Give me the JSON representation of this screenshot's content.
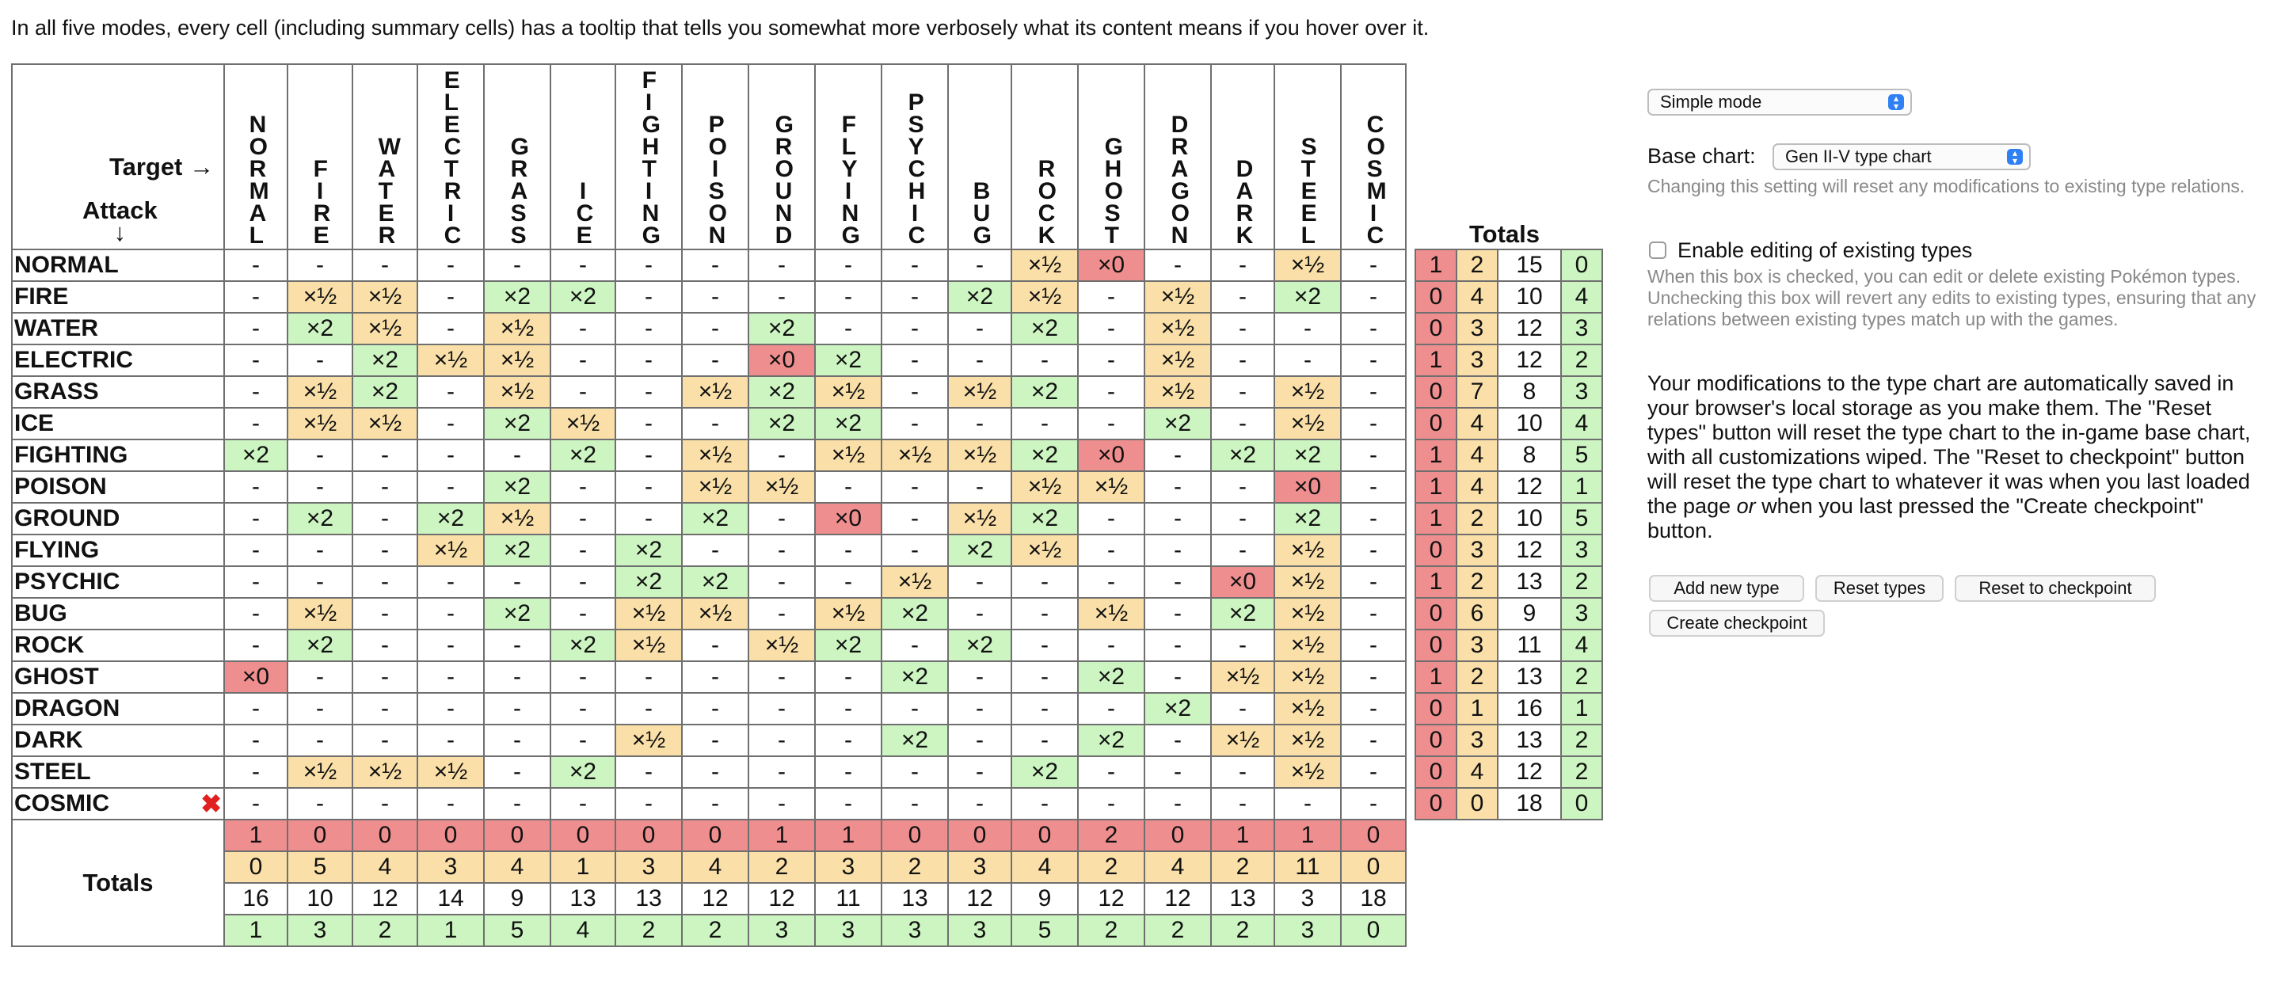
{
  "intro": {
    "before": "In all five modes, every cell (including summary cells) has a tooltip that tells you somewhat more verbosely what its content means if you hover over it."
  },
  "chart": {
    "target_label": "Target →",
    "attack_label": "Attack",
    "attack_arrow": "↓",
    "totals_label": "Totals",
    "columns": [
      "NORMAL",
      "FIRE",
      "WATER",
      "ELECTRIC",
      "GRASS",
      "ICE",
      "FIGHTING",
      "POISON",
      "GROUND",
      "FLYING",
      "PSYCHIC",
      "BUG",
      "ROCK",
      "GHOST",
      "DRAGON",
      "DARK",
      "STEEL",
      "COSMIC"
    ],
    "rows": [
      {
        "name": "NORMAL",
        "cells": [
          "-",
          "-",
          "-",
          "-",
          "-",
          "-",
          "-",
          "-",
          "-",
          "-",
          "-",
          "-",
          "×½",
          "×0",
          "-",
          "-",
          "×½",
          "-"
        ],
        "totals": [
          "1",
          "2",
          "15",
          "0"
        ]
      },
      {
        "name": "FIRE",
        "cells": [
          "-",
          "×½",
          "×½",
          "-",
          "×2",
          "×2",
          "-",
          "-",
          "-",
          "-",
          "-",
          "×2",
          "×½",
          "-",
          "×½",
          "-",
          "×2",
          "-"
        ],
        "totals": [
          "0",
          "4",
          "10",
          "4"
        ]
      },
      {
        "name": "WATER",
        "cells": [
          "-",
          "×2",
          "×½",
          "-",
          "×½",
          "-",
          "-",
          "-",
          "×2",
          "-",
          "-",
          "-",
          "×2",
          "-",
          "×½",
          "-",
          "-",
          "-"
        ],
        "totals": [
          "0",
          "3",
          "12",
          "3"
        ]
      },
      {
        "name": "ELECTRIC",
        "cells": [
          "-",
          "-",
          "×2",
          "×½",
          "×½",
          "-",
          "-",
          "-",
          "×0",
          "×2",
          "-",
          "-",
          "-",
          "-",
          "×½",
          "-",
          "-",
          "-"
        ],
        "totals": [
          "1",
          "3",
          "12",
          "2"
        ]
      },
      {
        "name": "GRASS",
        "cells": [
          "-",
          "×½",
          "×2",
          "-",
          "×½",
          "-",
          "-",
          "×½",
          "×2",
          "×½",
          "-",
          "×½",
          "×2",
          "-",
          "×½",
          "-",
          "×½",
          "-"
        ],
        "totals": [
          "0",
          "7",
          "8",
          "3"
        ]
      },
      {
        "name": "ICE",
        "cells": [
          "-",
          "×½",
          "×½",
          "-",
          "×2",
          "×½",
          "-",
          "-",
          "×2",
          "×2",
          "-",
          "-",
          "-",
          "-",
          "×2",
          "-",
          "×½",
          "-"
        ],
        "totals": [
          "0",
          "4",
          "10",
          "4"
        ]
      },
      {
        "name": "FIGHTING",
        "cells": [
          "×2",
          "-",
          "-",
          "-",
          "-",
          "×2",
          "-",
          "×½",
          "-",
          "×½",
          "×½",
          "×½",
          "×2",
          "×0",
          "-",
          "×2",
          "×2",
          "-"
        ],
        "totals": [
          "1",
          "4",
          "8",
          "5"
        ]
      },
      {
        "name": "POISON",
        "cells": [
          "-",
          "-",
          "-",
          "-",
          "×2",
          "-",
          "-",
          "×½",
          "×½",
          "-",
          "-",
          "-",
          "×½",
          "×½",
          "-",
          "-",
          "×0",
          "-"
        ],
        "totals": [
          "1",
          "4",
          "12",
          "1"
        ]
      },
      {
        "name": "GROUND",
        "cells": [
          "-",
          "×2",
          "-",
          "×2",
          "×½",
          "-",
          "-",
          "×2",
          "-",
          "×0",
          "-",
          "×½",
          "×2",
          "-",
          "-",
          "-",
          "×2",
          "-"
        ],
        "totals": [
          "1",
          "2",
          "10",
          "5"
        ]
      },
      {
        "name": "FLYING",
        "cells": [
          "-",
          "-",
          "-",
          "×½",
          "×2",
          "-",
          "×2",
          "-",
          "-",
          "-",
          "-",
          "×2",
          "×½",
          "-",
          "-",
          "-",
          "×½",
          "-"
        ],
        "totals": [
          "0",
          "3",
          "12",
          "3"
        ]
      },
      {
        "name": "PSYCHIC",
        "cells": [
          "-",
          "-",
          "-",
          "-",
          "-",
          "-",
          "×2",
          "×2",
          "-",
          "-",
          "×½",
          "-",
          "-",
          "-",
          "-",
          "×0",
          "×½",
          "-"
        ],
        "totals": [
          "1",
          "2",
          "13",
          "2"
        ]
      },
      {
        "name": "BUG",
        "cells": [
          "-",
          "×½",
          "-",
          "-",
          "×2",
          "-",
          "×½",
          "×½",
          "-",
          "×½",
          "×2",
          "-",
          "-",
          "×½",
          "-",
          "×2",
          "×½",
          "-"
        ],
        "totals": [
          "0",
          "6",
          "9",
          "3"
        ]
      },
      {
        "name": "ROCK",
        "cells": [
          "-",
          "×2",
          "-",
          "-",
          "-",
          "×2",
          "×½",
          "-",
          "×½",
          "×2",
          "-",
          "×2",
          "-",
          "-",
          "-",
          "-",
          "×½",
          "-"
        ],
        "totals": [
          "0",
          "3",
          "11",
          "4"
        ]
      },
      {
        "name": "GHOST",
        "cells": [
          "×0",
          "-",
          "-",
          "-",
          "-",
          "-",
          "-",
          "-",
          "-",
          "-",
          "×2",
          "-",
          "-",
          "×2",
          "-",
          "×½",
          "×½",
          "-"
        ],
        "totals": [
          "1",
          "2",
          "13",
          "2"
        ]
      },
      {
        "name": "DRAGON",
        "cells": [
          "-",
          "-",
          "-",
          "-",
          "-",
          "-",
          "-",
          "-",
          "-",
          "-",
          "-",
          "-",
          "-",
          "-",
          "×2",
          "-",
          "×½",
          "-"
        ],
        "totals": [
          "0",
          "1",
          "16",
          "1"
        ]
      },
      {
        "name": "DARK",
        "cells": [
          "-",
          "-",
          "-",
          "-",
          "-",
          "-",
          "×½",
          "-",
          "-",
          "-",
          "×2",
          "-",
          "-",
          "×2",
          "-",
          "×½",
          "×½",
          "-"
        ],
        "totals": [
          "0",
          "3",
          "13",
          "2"
        ]
      },
      {
        "name": "STEEL",
        "cells": [
          "-",
          "×½",
          "×½",
          "×½",
          "-",
          "×2",
          "-",
          "-",
          "-",
          "-",
          "-",
          "-",
          "×2",
          "-",
          "-",
          "-",
          "×½",
          "-"
        ],
        "totals": [
          "0",
          "4",
          "12",
          "2"
        ]
      },
      {
        "name": "COSMIC",
        "cells": [
          "-",
          "-",
          "-",
          "-",
          "-",
          "-",
          "-",
          "-",
          "-",
          "-",
          "-",
          "-",
          "-",
          "-",
          "-",
          "-",
          "-",
          "-"
        ],
        "totals": [
          "0",
          "0",
          "18",
          "0"
        ],
        "deletable": true
      }
    ],
    "delete_icon": "✖",
    "col_totals": [
      [
        "1",
        "0",
        "0",
        "0",
        "0",
        "0",
        "0",
        "0",
        "1",
        "1",
        "0",
        "0",
        "0",
        "2",
        "0",
        "1",
        "1",
        "0"
      ],
      [
        "0",
        "5",
        "4",
        "3",
        "4",
        "1",
        "3",
        "4",
        "2",
        "3",
        "2",
        "3",
        "4",
        "2",
        "4",
        "2",
        "11",
        "0"
      ],
      [
        "16",
        "10",
        "12",
        "14",
        "9",
        "13",
        "13",
        "12",
        "12",
        "11",
        "13",
        "12",
        "9",
        "12",
        "12",
        "13",
        "3",
        "18"
      ],
      [
        "1",
        "3",
        "2",
        "1",
        "5",
        "4",
        "2",
        "2",
        "3",
        "3",
        "3",
        "3",
        "5",
        "2",
        "2",
        "2",
        "3",
        "0"
      ]
    ],
    "colors": {
      "super_effective": "#cdf5c2",
      "not_very": "#fae0a8",
      "no_effect": "#ef8e8e",
      "border": "#6f6f6f"
    }
  },
  "panel": {
    "mode_select": "Simple mode",
    "base_chart_label": "Base chart:",
    "base_chart_select": "Gen II-V type chart",
    "base_chart_note": "Changing this setting will reset any modifications to existing type relations.",
    "edit_checkbox_label": "Enable editing of existing types",
    "edit_note": "When this box is checked, you can edit or delete existing Pokémon types. Unchecking this box will revert any edits to existing types, ensuring that any relations between existing types match up with the games.",
    "info_para_1": "Your modifications to the type chart are automatically saved in your browser's local storage as you make them. The \"Reset types\" button will reset the type chart to the in-game base chart, with all customizations wiped. The \"Reset to checkpoint\" button will reset the type chart to whatever it was when you last loaded the page ",
    "info_para_em": "or",
    "info_para_2": " when you last pressed the \"Create checkpoint\" button.",
    "buttons": {
      "add": "Add new type",
      "reset": "Reset types",
      "checkpoint_reset": "Reset to checkpoint",
      "create_checkpoint": "Create checkpoint"
    }
  }
}
